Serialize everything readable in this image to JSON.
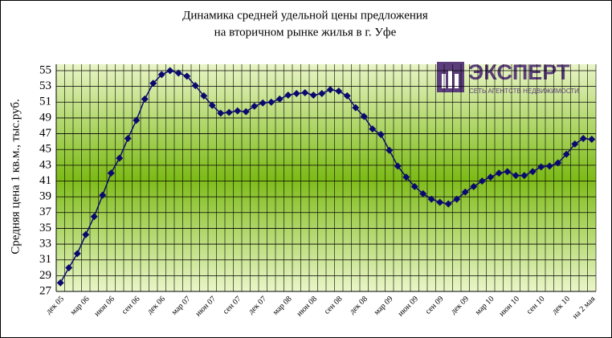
{
  "chart_data": {
    "type": "line",
    "title": "Динамика средней удельной цены предложения",
    "subtitle": "на вторичном рынке жилья в г. Уфе",
    "y_label": "Средняя цена 1 кв.м., тыс.руб.",
    "categories": [
      "дек 05",
      null,
      null,
      "мар 06",
      null,
      null,
      "июн 06",
      null,
      null,
      "сен 06",
      null,
      null,
      "дек 06",
      null,
      null,
      "мар 07",
      null,
      null,
      "июн 07",
      null,
      null,
      "сен 07",
      null,
      null,
      "дек 07",
      null,
      null,
      "мар 08",
      null,
      null,
      "июн 08",
      null,
      null,
      "сен 08",
      null,
      null,
      "дек 08",
      null,
      null,
      "мар 09",
      null,
      null,
      "июн 09",
      null,
      null,
      "сен 09",
      null,
      null,
      "дек 09",
      null,
      null,
      "мар 10",
      null,
      null,
      "июн 10",
      null,
      null,
      "сен 10",
      null,
      null,
      "дек 10",
      null,
      null,
      "на 2 мая"
    ],
    "series": [
      {
        "name": "Средняя цена",
        "color": "#0a0a6e",
        "values": [
          28.1,
          30.0,
          31.8,
          34.2,
          36.5,
          39.2,
          42.0,
          43.9,
          46.4,
          48.7,
          51.4,
          53.4,
          54.5,
          55.0,
          54.7,
          54.3,
          53.1,
          51.8,
          50.6,
          49.6,
          49.7,
          49.9,
          49.8,
          50.5,
          50.9,
          51.0,
          51.4,
          51.9,
          52.1,
          52.2,
          51.9,
          52.1,
          52.6,
          52.4,
          51.8,
          50.3,
          49.2,
          47.6,
          46.9,
          44.9,
          42.9,
          41.5,
          40.3,
          39.4,
          38.7,
          38.3,
          38.1,
          38.7,
          39.6,
          40.3,
          41.0,
          41.5,
          42.0,
          42.2,
          41.7,
          41.7,
          42.2,
          42.8,
          42.9,
          43.3,
          44.4,
          45.7,
          46.4,
          46.3
        ]
      }
    ],
    "ylim": [
      27,
      55
    ],
    "yticks": [
      27,
      29,
      31,
      33,
      35,
      37,
      39,
      41,
      43,
      45,
      47,
      49,
      51,
      53,
      55
    ],
    "grid": true
  },
  "logo": {
    "name": "ЭКСПЕРТ",
    "tagline": "СЕТЬ АГЕНТСТВ НЕДВИЖИМОСТИ"
  }
}
